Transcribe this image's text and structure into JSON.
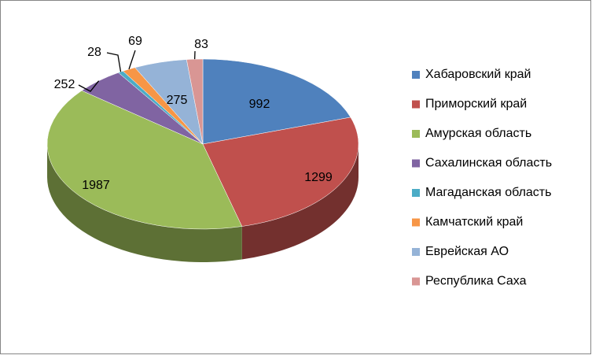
{
  "chart_data": {
    "type": "pie3d",
    "categories": [
      "Хабаровский край",
      "Приморский край",
      "Амурская область",
      "Сахалинская область",
      "Магаданская область",
      "Камчатский край",
      "Еврейская АО",
      "Республика Саха"
    ],
    "values": [
      992,
      1299,
      1987,
      252,
      28,
      69,
      275,
      83
    ],
    "colors": [
      "#4f81bd",
      "#c0504d",
      "#9bbb59",
      "#8064a2",
      "#4bacc6",
      "#f79646",
      "#95b3d7",
      "#d99694"
    ],
    "legend": "right"
  }
}
